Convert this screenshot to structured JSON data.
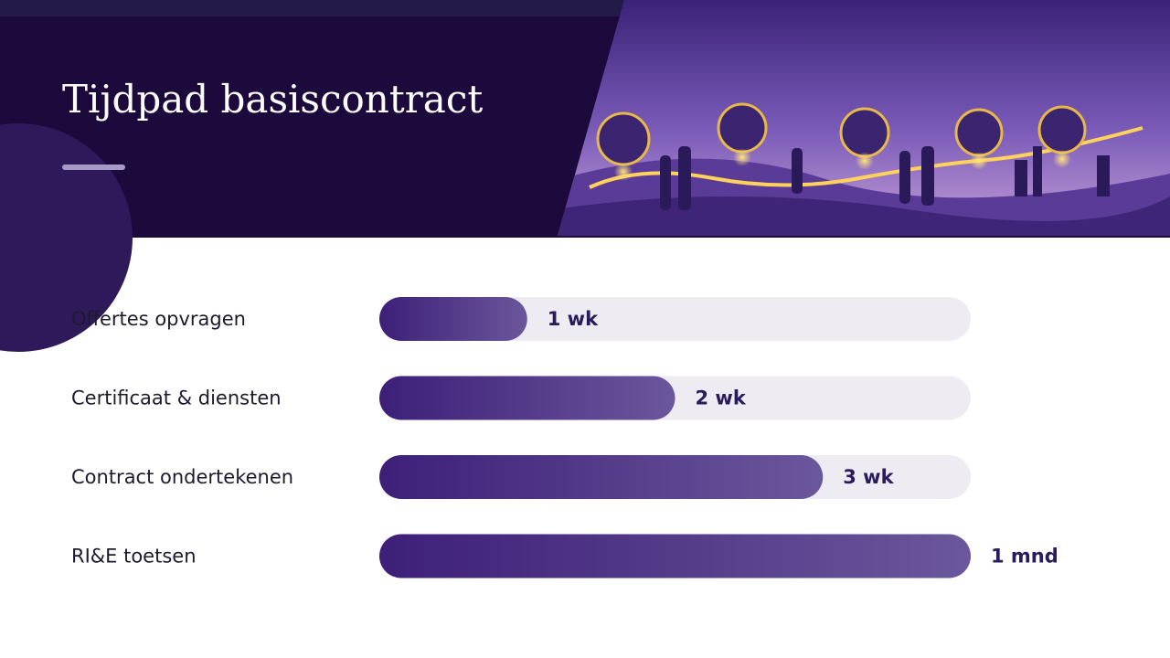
{
  "chart_data": {
    "type": "bar",
    "orientation": "horizontal",
    "title": "Tijdpad basiscontract",
    "categories": [
      "Offertes opvragen",
      "Certificaat & diensten",
      "Contract ondertekenen",
      "RI&E toetsen"
    ],
    "values": [
      1,
      2,
      3,
      4
    ],
    "value_labels": [
      "1 wk",
      "2 wk",
      "3 wk",
      "1 mnd"
    ],
    "xlim": [
      0,
      4
    ],
    "color": "#4a2a85"
  }
}
